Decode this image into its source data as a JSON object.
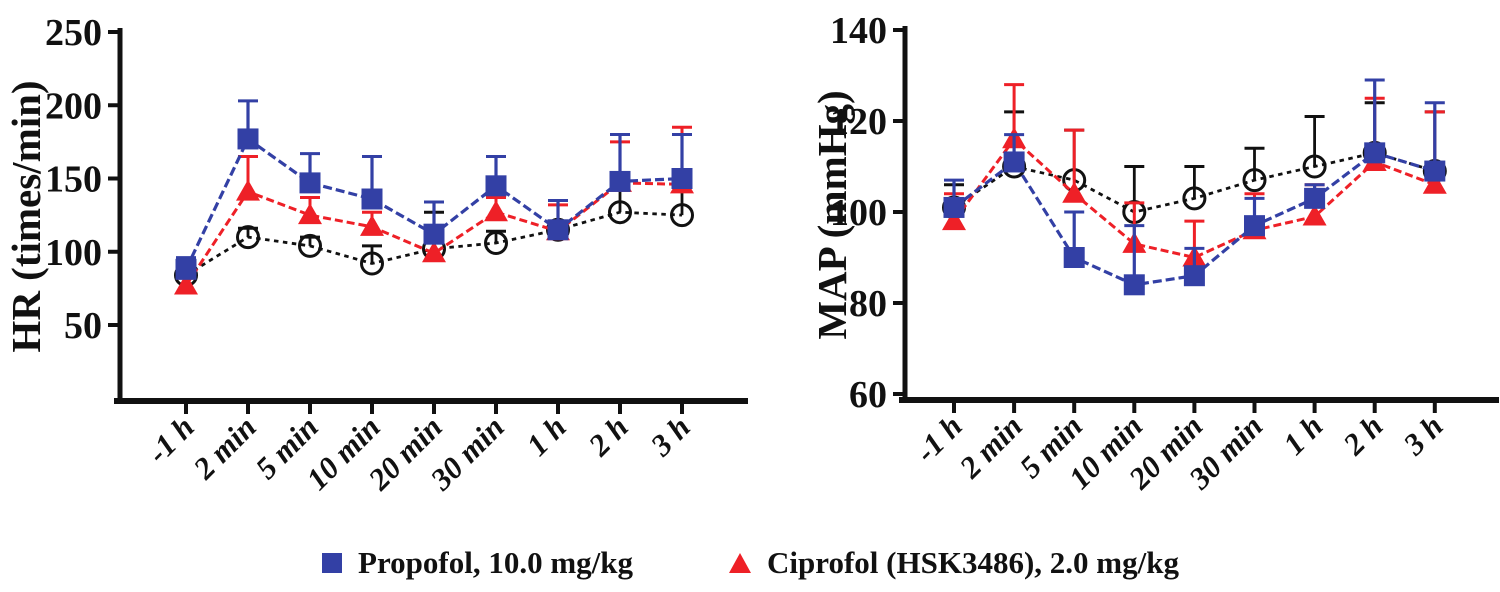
{
  "figure": {
    "background": "#ffffff",
    "colors": {
      "propofol": "#3340a5",
      "ciprofol": "#ee2027",
      "unlabeled_series": "#111111",
      "axis": "#111111"
    }
  },
  "legend": {
    "items": [
      {
        "label": "Propofol, 10.0 mg/kg",
        "marker": "filled-square",
        "color": "#3340a5"
      },
      {
        "label": "Ciprofol (HSK3486), 2.0 mg/kg",
        "marker": "filled-triangle",
        "color": "#ee2027"
      }
    ]
  },
  "chart_data": [
    {
      "id": "hr",
      "type": "line",
      "title": "",
      "xlabel": "",
      "ylabel": "HR (times/min)",
      "categories": [
        "-1 h",
        "2 min",
        "5 min",
        "10 min",
        "20 min",
        "30 min",
        "1 h",
        "2 h",
        "3 h"
      ],
      "yticks": [
        50,
        100,
        150,
        200,
        250
      ],
      "ylim": [
        0,
        250
      ],
      "grid": false,
      "legend_position": "bottom",
      "series": [
        {
          "name": "Propofol, 10.0 mg/kg",
          "marker": "square",
          "color": "#3340a5",
          "line_style": "dashed",
          "values": [
            88,
            177,
            147,
            136,
            112,
            145,
            115,
            148,
            150
          ],
          "err_up": [
            8,
            26,
            20,
            29,
            22,
            20,
            20,
            32,
            30
          ]
        },
        {
          "name": "Ciprofol (HSK3486), 2.0 mg/kg",
          "marker": "triangle",
          "color": "#ee2027",
          "line_style": "dashed",
          "values": [
            77,
            141,
            125,
            117,
            99,
            127,
            114,
            147,
            146
          ],
          "err_up": [
            5,
            24,
            12,
            10,
            9,
            10,
            18,
            28,
            39
          ]
        },
        {
          "name": "",
          "marker": "open-circle",
          "color": "#111111",
          "line_style": "dashed",
          "values": [
            84,
            110,
            104,
            92,
            102,
            106,
            115,
            127,
            125
          ],
          "err_up": [
            5,
            6,
            6,
            12,
            25,
            8,
            20,
            23,
            22
          ]
        }
      ]
    },
    {
      "id": "map",
      "type": "line",
      "title": "",
      "xlabel": "",
      "ylabel": "MAP (mmHg)",
      "categories": [
        "-1 h",
        "2 min",
        "5 min",
        "10 min",
        "20 min",
        "30 min",
        "1 h",
        "2 h",
        "3 h"
      ],
      "yticks": [
        60,
        80,
        100,
        120,
        140
      ],
      "ylim": [
        58,
        140
      ],
      "grid": false,
      "legend_position": "bottom",
      "series": [
        {
          "name": "Propofol, 10.0 mg/kg",
          "marker": "square",
          "color": "#3340a5",
          "line_style": "dashed",
          "values": [
            101,
            111,
            90,
            84,
            86,
            97,
            103,
            113,
            109
          ],
          "err_up": [
            6,
            6,
            10,
            13,
            6,
            6,
            3,
            16,
            15
          ]
        },
        {
          "name": "Ciprofol (HSK3486), 2.0 mg/kg",
          "marker": "triangle",
          "color": "#ee2027",
          "line_style": "dashed",
          "values": [
            98,
            116,
            104,
            93,
            90,
            96,
            99,
            111,
            106
          ],
          "err_up": [
            6,
            12,
            14,
            9,
            8,
            8,
            7,
            14,
            16
          ]
        },
        {
          "name": "",
          "marker": "open-circle",
          "color": "#111111",
          "line_style": "dashed",
          "values": [
            101,
            110,
            107,
            100,
            103,
            107,
            110,
            113,
            109
          ],
          "err_up": [
            5,
            12,
            11,
            10,
            7,
            7,
            11,
            11,
            13
          ]
        }
      ]
    }
  ]
}
